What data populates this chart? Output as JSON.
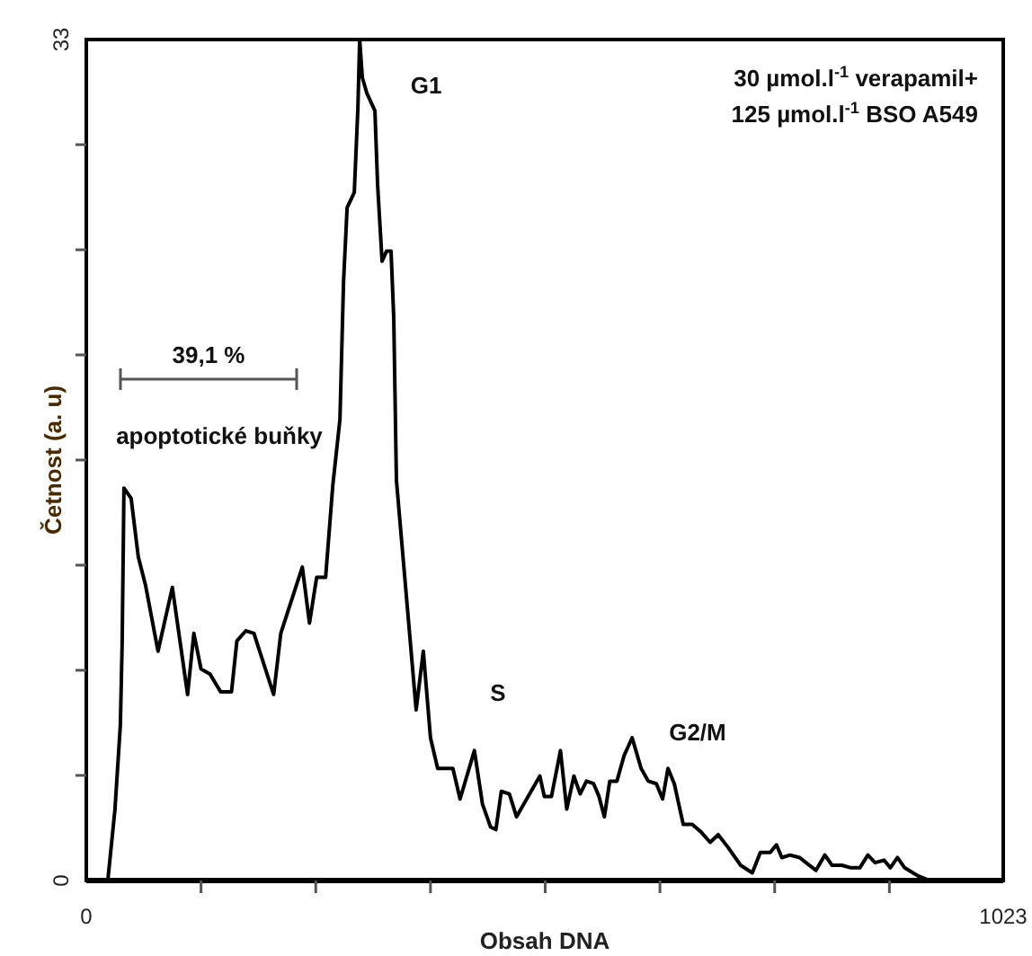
{
  "chart_data": {
    "type": "line",
    "xlabel": "Obsah DNA",
    "ylabel": "Četnost (a. u)",
    "xlim": [
      0,
      1023
    ],
    "ylim": [
      0,
      33
    ],
    "xticks": [
      0,
      {
        "value": 128,
        "label": null
      },
      {
        "value": 256,
        "label": null
      },
      {
        "value": 384,
        "label": null
      },
      {
        "value": 512,
        "label": null
      },
      {
        "value": 640,
        "label": null
      },
      {
        "value": 768,
        "label": null
      },
      {
        "value": 896,
        "label": null
      },
      1023
    ],
    "yticks": [
      0,
      {
        "value": 4.125,
        "label": null
      },
      {
        "value": 8.25,
        "label": null
      },
      {
        "value": 12.375,
        "label": null
      },
      {
        "value": 16.5,
        "label": null
      },
      {
        "value": 20.625,
        "label": null
      },
      {
        "value": 24.75,
        "label": null
      },
      {
        "value": 28.875,
        "label": null
      },
      33
    ],
    "grid": false,
    "marker": "none",
    "line_style": "solid",
    "annotations": [
      "30 µmol.l$^{-1}$ verapamil+",
      "125 µmol.l$^{-1}$ BSO A549",
      "G1",
      "S",
      "G2/M",
      "39,1 %",
      "apoptotické buňky"
    ],
    "series": [
      {
        "color": "#000000",
        "x": [
          24,
          32,
          38,
          40,
          41,
          42,
          50,
          58,
          66,
          80,
          96,
          113,
          120,
          128,
          138,
          150,
          162,
          168,
          178,
          187,
          209,
          217,
          241,
          249,
          257,
          267,
          275,
          283,
          287,
          291,
          299,
          303,
          305,
          308,
          313,
          322,
          325,
          330,
          335,
          340,
          343,
          346,
          368,
          376,
          384,
          392,
          409,
          417,
          433,
          442,
          451,
          457,
          463,
          472,
          480,
          506,
          511,
          519,
          529,
          536,
          544,
          551,
          558,
          566,
          572,
          578,
          584,
          592,
          600,
          609,
          619,
          627,
          636,
          643,
          649,
          656,
          666,
          676,
          686,
          696,
          705,
          716,
          730,
          743,
          752,
          763,
          770,
          776,
          785,
          796,
          803,
          814,
          824,
          832,
          843,
          853,
          863,
          872,
          880,
          890,
          897,
          905,
          913,
          927,
          941
        ],
        "values": [
          0,
          2.8,
          6.1,
          9.3,
          12.3,
          15.4,
          15,
          12.7,
          11.6,
          9,
          11.5,
          7.3,
          9.7,
          8.3,
          8.1,
          7.4,
          7.4,
          9.4,
          9.8,
          9.7,
          7.3,
          9.7,
          12.3,
          10.1,
          11.9,
          11.9,
          15.5,
          18.1,
          23.5,
          26.4,
          27,
          30.3,
          33,
          31.5,
          30.9,
          30.2,
          27.3,
          24.3,
          24.7,
          24.7,
          22.1,
          15.7,
          6.7,
          9,
          5.6,
          4.4,
          4.4,
          3.2,
          5.1,
          3,
          2.1,
          2,
          3.5,
          3.4,
          2.5,
          4.1,
          3.3,
          3.3,
          5.1,
          2.8,
          4.1,
          3.4,
          3.9,
          3.8,
          3.3,
          2.5,
          3.9,
          3.9,
          4.9,
          5.6,
          4.4,
          3.9,
          3.8,
          3.2,
          4.4,
          3.8,
          2.2,
          2.2,
          1.9,
          1.5,
          1.8,
          1.3,
          0.6,
          0.3,
          1.1,
          1.1,
          1.4,
          0.9,
          1,
          0.9,
          0.7,
          0.4,
          1,
          0.6,
          0.6,
          0.5,
          0.5,
          1,
          0.7,
          0.8,
          0.5,
          0.9,
          0.5,
          0.2,
          0
        ]
      }
    ]
  }
}
